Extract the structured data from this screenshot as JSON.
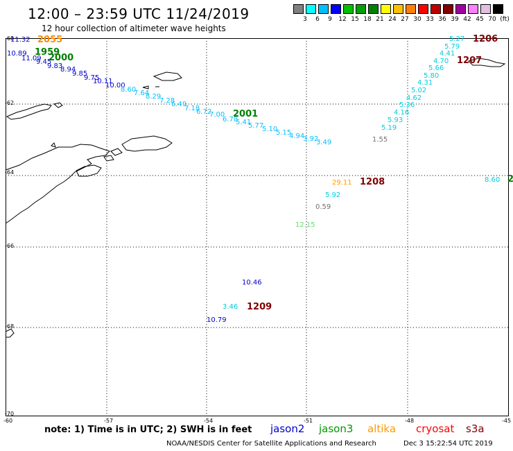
{
  "header": {
    "title": "12:00 – 23:59 UTC 11/24/2019",
    "subtitle": "12 hour collection of altimeter wave heights"
  },
  "colorbar": {
    "labels": [
      "3",
      "6",
      "9",
      "12",
      "15",
      "18",
      "21",
      "24",
      "27",
      "30",
      "33",
      "36",
      "39",
      "42",
      "45",
      "70",
      "(ft)"
    ],
    "colors": [
      "#808080",
      "#00ffff",
      "#00bfff",
      "#0000ff",
      "#00c000",
      "#00a000",
      "#008000",
      "#ffff00",
      "#ffc000",
      "#ff8000",
      "#ff0000",
      "#c00000",
      "#800000",
      "#a000a0",
      "#ff80ff",
      "#e0c0e0",
      "#000000"
    ]
  },
  "axes": {
    "lat_labels": [
      "-60",
      "-62",
      "-64",
      "-66",
      "-68",
      "-70"
    ],
    "lon_labels": [
      "-60",
      "-57",
      "-54",
      "-51",
      "-48",
      "-45"
    ]
  },
  "time_tags": [
    {
      "label": "2055",
      "color": "#ff8c00"
    },
    {
      "label": "1959",
      "color": "#008000"
    },
    {
      "label": "2000",
      "color": "#008000"
    },
    {
      "label": "2001",
      "color": "#008000"
    },
    {
      "label": "1206",
      "color": "#800000"
    },
    {
      "label": "1207",
      "color": "#800000"
    },
    {
      "label": "1208",
      "color": "#800000"
    },
    {
      "label": "1209",
      "color": "#800000"
    },
    {
      "label": "2",
      "color": "#008000"
    }
  ],
  "observations": [
    {
      "v": "11.32",
      "c": "#0000cc"
    },
    {
      "v": "10.89",
      "c": "#0000cc"
    },
    {
      "v": "11.09",
      "c": "#0000cc"
    },
    {
      "v": "9.45",
      "c": "#0000cc"
    },
    {
      "v": "9.83",
      "c": "#0000cc"
    },
    {
      "v": "8.94",
      "c": "#0000cc"
    },
    {
      "v": "9.85",
      "c": "#0000cc"
    },
    {
      "v": "9.75",
      "c": "#0000cc"
    },
    {
      "v": "10.11",
      "c": "#0000cc"
    },
    {
      "v": "10.00",
      "c": "#0000cc"
    },
    {
      "v": "8.60",
      "c": "#00bfff"
    },
    {
      "v": "7.64",
      "c": "#00bfff"
    },
    {
      "v": "8.29",
      "c": "#00bfff"
    },
    {
      "v": "7.28",
      "c": "#00bfff"
    },
    {
      "v": "6.49",
      "c": "#00bfff"
    },
    {
      "v": "7.18",
      "c": "#00bfff"
    },
    {
      "v": "6.72",
      "c": "#00bfff"
    },
    {
      "v": "7.00",
      "c": "#00bfff"
    },
    {
      "v": "6.78",
      "c": "#00bfff"
    },
    {
      "v": "5.41",
      "c": "#00bfff"
    },
    {
      "v": "5.77",
      "c": "#00bfff"
    },
    {
      "v": "5.10",
      "c": "#00bfff"
    },
    {
      "v": "5.15",
      "c": "#00bfff"
    },
    {
      "v": "4.94",
      "c": "#00bfff"
    },
    {
      "v": "3.92",
      "c": "#00bfff"
    },
    {
      "v": "3.49",
      "c": "#00bfff"
    },
    {
      "v": "5.27",
      "c": "#00ccdd"
    },
    {
      "v": "5.79",
      "c": "#00ccdd"
    },
    {
      "v": "4.41",
      "c": "#00ccdd"
    },
    {
      "v": "4.70",
      "c": "#00ccdd"
    },
    {
      "v": "5.66",
      "c": "#00ccdd"
    },
    {
      "v": "5.80",
      "c": "#00ccdd"
    },
    {
      "v": "4.31",
      "c": "#00ccdd"
    },
    {
      "v": "5.02",
      "c": "#00ccdd"
    },
    {
      "v": "4.62",
      "c": "#00ccdd"
    },
    {
      "v": "5.36",
      "c": "#00ccdd"
    },
    {
      "v": "4.16",
      "c": "#00ccdd"
    },
    {
      "v": "5.93",
      "c": "#00ccdd"
    },
    {
      "v": "5.19",
      "c": "#00ccdd"
    },
    {
      "v": "1.55",
      "c": "#707070"
    },
    {
      "v": "29.11",
      "c": "#ff9900"
    },
    {
      "v": "5.92",
      "c": "#00ccdd"
    },
    {
      "v": "0.59",
      "c": "#707070"
    },
    {
      "v": "12.15",
      "c": "#66dd66"
    },
    {
      "v": "10.46",
      "c": "#0000cc"
    },
    {
      "v": "3.46",
      "c": "#00ccdd"
    },
    {
      "v": "10.79",
      "c": "#0000cc"
    },
    {
      "v": "8.60",
      "c": "#00ccdd"
    }
  ],
  "footer": {
    "note": "note:  1) Time is in UTC;  2) SWH is in feet",
    "missions": [
      {
        "name": "jason2",
        "color": "#0000cc"
      },
      {
        "name": "jason3",
        "color": "#009900"
      },
      {
        "name": "altika",
        "color": "#ff9900"
      },
      {
        "name": "cryosat",
        "color": "#ff0000"
      },
      {
        "name": "s3a",
        "color": "#800000"
      }
    ],
    "credit": "NOAA/NESDIS Center for Satellite Applications and Research",
    "timestamp": "Dec  3 15:22:54 UTC 2019"
  }
}
